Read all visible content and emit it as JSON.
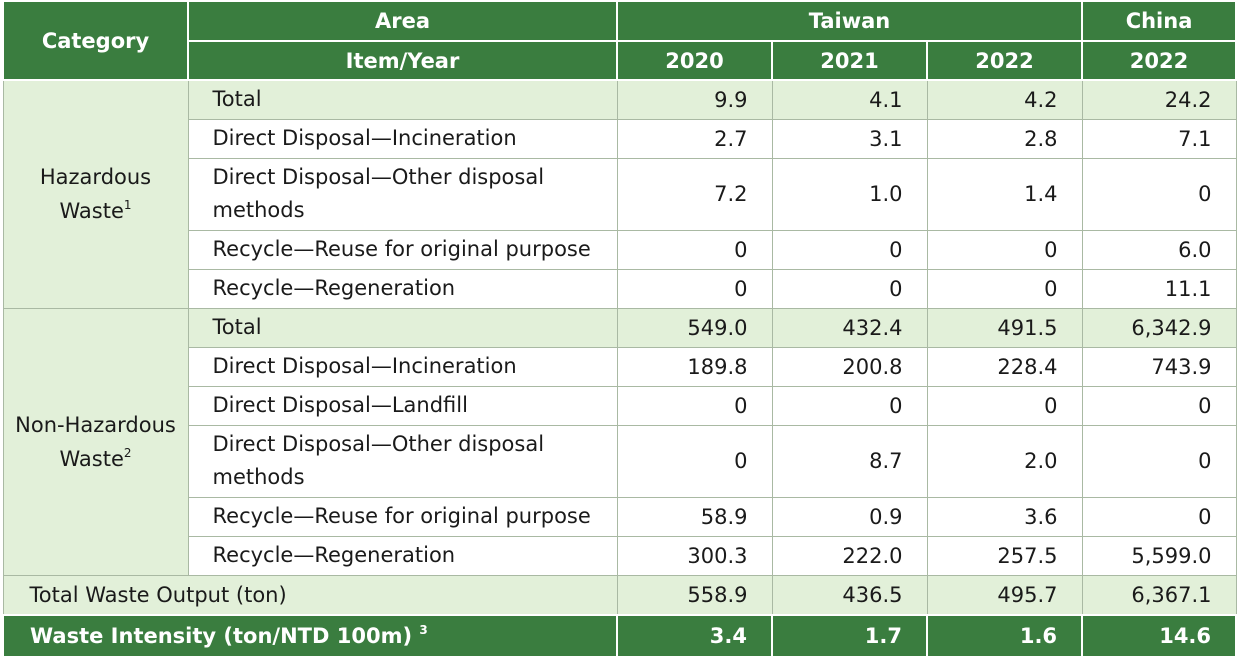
{
  "header": {
    "category": "Category",
    "area": "Area",
    "item_year": "Item/Year",
    "taiwan": "Taiwan",
    "china": "China",
    "years": [
      "2020",
      "2021",
      "2022",
      "2022"
    ]
  },
  "sections": [
    {
      "category": "Hazardous Waste",
      "category_line1": "Hazardous",
      "category_line2": "Waste",
      "footnote": "1",
      "rows": [
        {
          "item": "Total",
          "values": [
            "9.9",
            "4.1",
            "4.2",
            "24.2"
          ]
        },
        {
          "item": "Direct Disposal—Incineration",
          "values": [
            "2.7",
            "3.1",
            "2.8",
            "7.1"
          ]
        },
        {
          "item": "Direct Disposal—Other disposal methods",
          "values": [
            "7.2",
            "1.0",
            "1.4",
            "0"
          ]
        },
        {
          "item": "Recycle—Reuse for original purpose",
          "values": [
            "0",
            "0",
            "0",
            "6.0"
          ]
        },
        {
          "item": "Recycle—Regeneration",
          "values": [
            "0",
            "0",
            "0",
            "11.1"
          ]
        }
      ]
    },
    {
      "category": "Non-Hazardous Waste",
      "category_line1": "Non-Hazardous",
      "category_line2": "Waste",
      "footnote": "2",
      "rows": [
        {
          "item": "Total",
          "values": [
            "549.0",
            "432.4",
            "491.5",
            "6,342.9"
          ]
        },
        {
          "item": "Direct Disposal—Incineration",
          "values": [
            "189.8",
            "200.8",
            "228.4",
            "743.9"
          ]
        },
        {
          "item": "Direct Disposal—Landfill",
          "values": [
            "0",
            "0",
            "0",
            "0"
          ]
        },
        {
          "item": "Direct Disposal—Other disposal methods",
          "values": [
            "0",
            "8.7",
            "2.0",
            "0"
          ]
        },
        {
          "item": "Recycle—Reuse for original purpose",
          "values": [
            "58.9",
            "0.9",
            "3.6",
            "0"
          ]
        },
        {
          "item": "Recycle—Regeneration",
          "values": [
            "300.3",
            "222.0",
            "257.5",
            "5,599.0"
          ]
        }
      ]
    }
  ],
  "total_output": {
    "label": "Total Waste Output (ton)",
    "values": [
      "558.9",
      "436.5",
      "495.7",
      "6,367.1"
    ]
  },
  "intensity": {
    "label": "Waste Intensity (ton/NTD 100m)",
    "footnote": "3",
    "values": [
      "3.4",
      "1.7",
      "1.6",
      "14.6"
    ]
  },
  "colors": {
    "header_green": "#3a7d3f",
    "light_green": "#e2f0d9",
    "border": "#a9b9a3"
  }
}
